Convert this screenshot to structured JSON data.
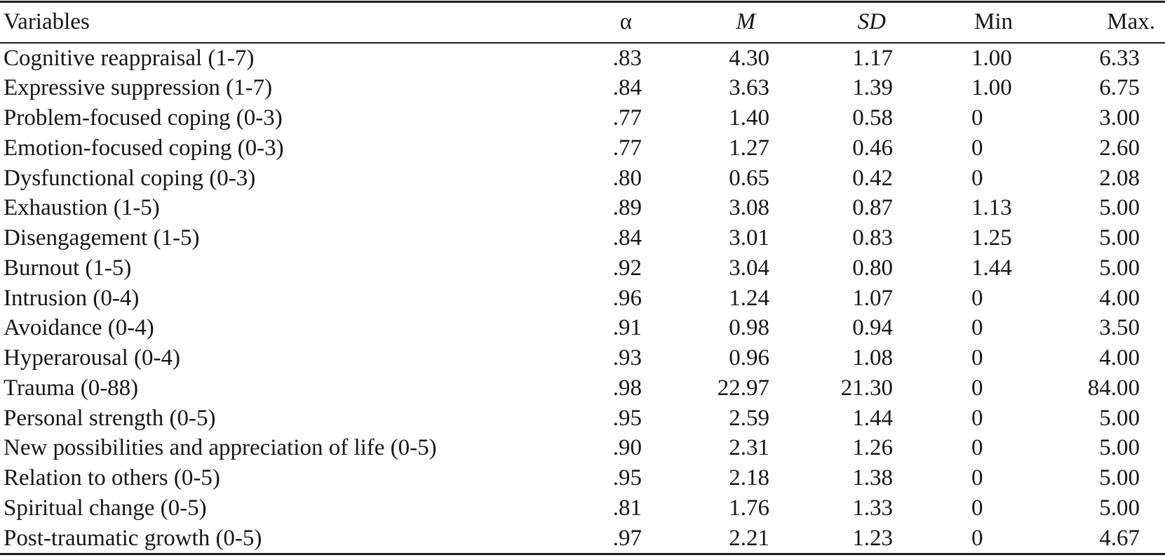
{
  "colors": {
    "text": "#161616",
    "rule": "#1c1c1c",
    "background": "#ffffff"
  },
  "chart_data": {
    "type": "table",
    "columns": [
      "Variables",
      "α",
      "M",
      "SD",
      "Min",
      "Max."
    ],
    "rows": [
      [
        "Cognitive reappraisal (1-7)",
        ".83",
        "4.30",
        "1.17",
        "1.00",
        "6.33"
      ],
      [
        "Expressive suppression (1-7)",
        ".84",
        "3.63",
        "1.39",
        "1.00",
        "6.75"
      ],
      [
        "Problem-focused coping (0-3)",
        ".77",
        "1.40",
        "0.58",
        "0",
        "3.00"
      ],
      [
        "Emotion-focused coping (0-3)",
        ".77",
        "1.27",
        "0.46",
        "0",
        "2.60"
      ],
      [
        "Dysfunctional coping (0-3)",
        ".80",
        "0.65",
        "0.42",
        "0",
        "2.08"
      ],
      [
        "Exhaustion (1-5)",
        ".89",
        "3.08",
        "0.87",
        "1.13",
        "5.00"
      ],
      [
        "Disengagement (1-5)",
        ".84",
        "3.01",
        "0.83",
        "1.25",
        "5.00"
      ],
      [
        "Burnout (1-5)",
        ".92",
        "3.04",
        "0.80",
        "1.44",
        "5.00"
      ],
      [
        "Intrusion (0-4)",
        ".96",
        "1.24",
        "1.07",
        "0",
        "4.00"
      ],
      [
        "Avoidance (0-4)",
        ".91",
        "0.98",
        "0.94",
        "0",
        "3.50"
      ],
      [
        "Hyperarousal (0-4)",
        ".93",
        "0.96",
        "1.08",
        "0",
        "4.00"
      ],
      [
        "Trauma (0-88)",
        ".98",
        "22.97",
        "21.30",
        "0",
        "84.00"
      ],
      [
        "Personal strength (0-5)",
        ".95",
        "2.59",
        "1.44",
        "0",
        "5.00"
      ],
      [
        "New possibilities and appreciation of life (0-5)",
        ".90",
        "2.31",
        "1.26",
        "0",
        "5.00"
      ],
      [
        "Relation to others (0-5)",
        ".95",
        "2.18",
        "1.38",
        "0",
        "5.00"
      ],
      [
        "Spiritual change (0-5)",
        ".81",
        "1.76",
        "1.33",
        "0",
        "5.00"
      ],
      [
        "Post-traumatic growth (0-5)",
        ".97",
        "2.21",
        "1.23",
        "0",
        "4.67"
      ]
    ]
  }
}
